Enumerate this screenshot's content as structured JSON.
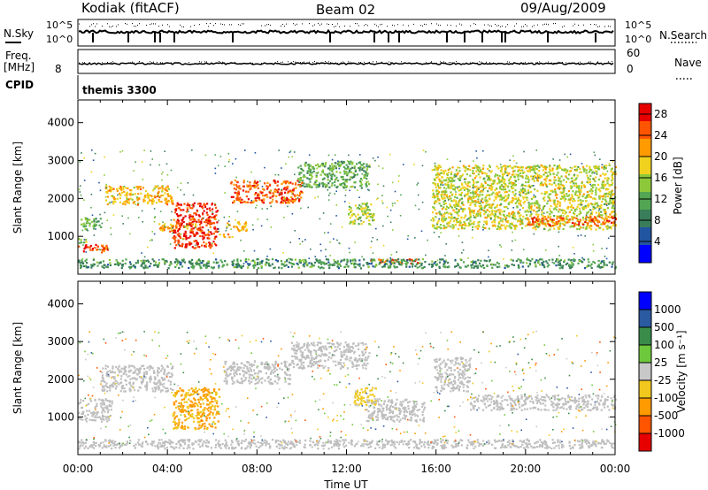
{
  "header": {
    "title": "Kodiak (fitACF)",
    "beam": "Beam 02",
    "date": "09/Aug/2009"
  },
  "top_strip": {
    "nsky_label": "N.Sky",
    "nsearch_label": "N.Search",
    "noise_ticks": [
      "10^5",
      "10^0"
    ],
    "freq_label": "Freq.",
    "freq_unit": "[MHz]",
    "freq_ticks": [
      "8"
    ],
    "nave_label": "Nave",
    "nave_ticks": [
      "60",
      "0"
    ],
    "cpid_label": "CPID",
    "cpid_value": "themis 3300"
  },
  "colors": {
    "power_scale": [
      "#0000ff",
      "#2255a0",
      "#3a7d5a",
      "#52a552",
      "#8cc83a",
      "#f0d21e",
      "#ff9a00",
      "#ff5500",
      "#e60000"
    ],
    "velocity_scale": [
      "#e60000",
      "#ff5500",
      "#ff9a00",
      "#f0c81e",
      "#c8c8c8",
      "#6ec83c",
      "#3a8c4a",
      "#2a5aa0",
      "#0000ff"
    ],
    "ground_scatter": "#bebebe"
  },
  "chart_data": [
    {
      "type": "heatmap",
      "panel": "power",
      "xlabel": "",
      "ylabel": "Slant Range [km]",
      "xlim": [
        "00:00",
        "24:00"
      ],
      "ylim": [
        0,
        4600
      ],
      "y_ticks": [
        "1000",
        "2000",
        "3000",
        "4000"
      ],
      "colorbar_label": "Power [dB]",
      "colorbar_ticks": [
        "4",
        "8",
        "12",
        "16",
        "20",
        "24",
        "28"
      ],
      "colorbar_range": [
        0,
        30
      ],
      "regions": [
        {
          "t": [
            0.0,
            1.3
          ],
          "r": [
            600,
            820
          ],
          "value": 26
        },
        {
          "t": [
            0.0,
            0.4
          ],
          "r": [
            840,
            1000
          ],
          "value": 14
        },
        {
          "t": [
            0.0,
            1.0
          ],
          "r": [
            1200,
            1500
          ],
          "value": 12
        },
        {
          "t": [
            1.2,
            4.2
          ],
          "r": [
            1850,
            2350
          ],
          "value": 20
        },
        {
          "t": [
            3.6,
            5.5
          ],
          "r": [
            1150,
            1350
          ],
          "value": 22
        },
        {
          "t": [
            4.2,
            6.2
          ],
          "r": [
            700,
            1900
          ],
          "value": 27
        },
        {
          "t": [
            6.3,
            6.9
          ],
          "r": [
            1000,
            1100
          ],
          "value": 20
        },
        {
          "t": [
            6.6,
            7.6
          ],
          "r": [
            1150,
            1400
          ],
          "value": 20
        },
        {
          "t": [
            6.8,
            10.0
          ],
          "r": [
            1900,
            2500
          ],
          "value": 25
        },
        {
          "t": [
            9.8,
            13.0
          ],
          "r": [
            2300,
            3000
          ],
          "value": 12
        },
        {
          "t": [
            12.0,
            13.2
          ],
          "r": [
            1350,
            1900
          ],
          "value": 16
        },
        {
          "t": [
            13.0,
            15.2
          ],
          "r": [
            300,
            420
          ],
          "value": 25
        },
        {
          "t": [
            15.8,
            24.0
          ],
          "r": [
            1200,
            2900
          ],
          "value": 17
        },
        {
          "t": [
            20.0,
            24.0
          ],
          "r": [
            1300,
            1550
          ],
          "value": 24
        },
        {
          "t": [
            0.0,
            24.0
          ],
          "r": [
            180,
            420
          ],
          "value": 10
        }
      ]
    },
    {
      "type": "heatmap",
      "panel": "velocity",
      "xlabel": "Time UT",
      "ylabel": "Slant Range [km]",
      "xlim": [
        "00:00",
        "24:00"
      ],
      "ylim": [
        0,
        4600
      ],
      "x_ticks": [
        "00:00",
        "04:00",
        "08:00",
        "12:00",
        "16:00",
        "20:00",
        "00:00"
      ],
      "y_ticks": [
        "1000",
        "2000",
        "3000",
        "4000"
      ],
      "colorbar_label": "Velocity [m s⁻¹]",
      "colorbar_ticks": [
        "1000",
        "500",
        "100",
        "25",
        "-25",
        "-100",
        "-500",
        "-1000"
      ],
      "colorbar_range": [
        -1200,
        1200
      ],
      "regions": [
        {
          "t": [
            0.0,
            1.5
          ],
          "r": [
            900,
            1500
          ],
          "value": 0,
          "ground": true
        },
        {
          "t": [
            1.0,
            4.2
          ],
          "r": [
            1700,
            2400
          ],
          "value": 0,
          "ground": true
        },
        {
          "t": [
            4.2,
            6.3
          ],
          "r": [
            700,
            1800
          ],
          "value": -420
        },
        {
          "t": [
            6.5,
            9.5
          ],
          "r": [
            1900,
            2500
          ],
          "value": 0,
          "ground": true
        },
        {
          "t": [
            9.5,
            13.0
          ],
          "r": [
            2300,
            3000
          ],
          "value": 0,
          "ground": true
        },
        {
          "t": [
            12.3,
            13.3
          ],
          "r": [
            1300,
            1800
          ],
          "value": -200
        },
        {
          "t": [
            12.8,
            15.5
          ],
          "r": [
            900,
            1500
          ],
          "value": 0,
          "ground": true
        },
        {
          "t": [
            15.9,
            17.5
          ],
          "r": [
            1700,
            2600
          ],
          "value": 0,
          "ground": true
        },
        {
          "t": [
            17.5,
            24.0
          ],
          "r": [
            1200,
            1600
          ],
          "value": 0,
          "ground": true
        },
        {
          "t": [
            0.0,
            24.0
          ],
          "r": [
            180,
            420
          ],
          "value": 0,
          "ground": true
        }
      ]
    }
  ]
}
